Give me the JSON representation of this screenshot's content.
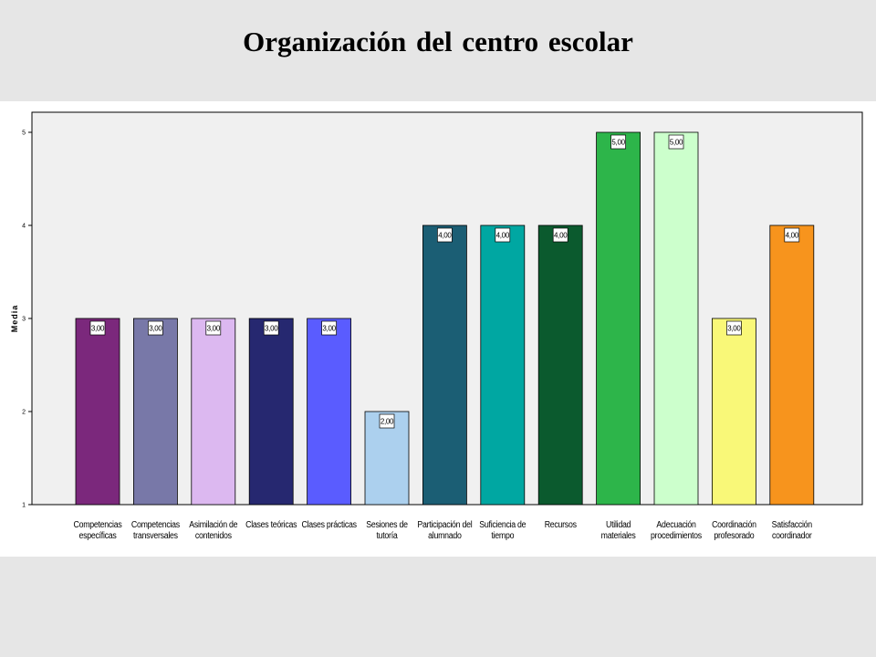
{
  "title": "Organización del centro escolar",
  "chart_data": {
    "type": "bar",
    "ylabel": "Media",
    "xlabel": "",
    "ylim": [
      1,
      5.2
    ],
    "yticks": [
      "1",
      "2",
      "3",
      "4",
      "5"
    ],
    "grid": false,
    "categories": [
      [
        "Competencias",
        "específicas"
      ],
      [
        "Competencias",
        "transversales"
      ],
      [
        "Asimilación de",
        "contenidos"
      ],
      [
        "Clases teóricas"
      ],
      [
        "Clases prácticas"
      ],
      [
        "Sesiones de",
        "tutoría"
      ],
      [
        "Participación del",
        "alumnado"
      ],
      [
        "Suficiencia de",
        "tiempo"
      ],
      [
        "Recursos"
      ],
      [
        "Utilidad",
        "materiales"
      ],
      [
        "Adecuación",
        "procedimientos"
      ],
      [
        "Coordinación",
        "profesorado"
      ],
      [
        "Satisfacción",
        "coordinador"
      ]
    ],
    "values": [
      3,
      3,
      3,
      3,
      3,
      2,
      4,
      4,
      4,
      5,
      5,
      3,
      4
    ],
    "data_labels": [
      "3,00",
      "3,00",
      "3,00",
      "3,00",
      "3,00",
      "2,00",
      "4,00",
      "4,00",
      "4,00",
      "5,00",
      "5,00",
      "3,00",
      "4,00"
    ],
    "colors": [
      "#7b287c",
      "#7878a8",
      "#dcb8f0",
      "#262870",
      "#5a5cff",
      "#acd0ee",
      "#1b5e74",
      "#00a7a2",
      "#0b5a2e",
      "#2db54a",
      "#ccffcc",
      "#f9f878",
      "#f7941d"
    ],
    "plot_background": "#f0f0f0"
  }
}
